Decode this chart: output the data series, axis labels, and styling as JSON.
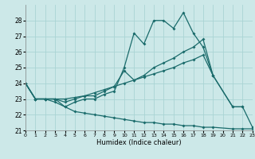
{
  "xlabel": "Humidex (Indice chaleur)",
  "background_color": "#cce8e8",
  "grid_color": "#aad4d4",
  "line_color": "#1a6b6b",
  "xlim": [
    0,
    23
  ],
  "ylim": [
    21,
    29
  ],
  "yticks": [
    21,
    22,
    23,
    24,
    25,
    26,
    27,
    28
  ],
  "xticks": [
    0,
    1,
    2,
    3,
    4,
    5,
    6,
    7,
    8,
    9,
    10,
    11,
    12,
    13,
    14,
    15,
    16,
    17,
    18,
    19,
    20,
    21,
    22,
    23
  ],
  "lines": [
    {
      "x": [
        0,
        1,
        2,
        3,
        4,
        5,
        6,
        7,
        8,
        9,
        10,
        11,
        12,
        13,
        14,
        15,
        16,
        17,
        18,
        19,
        21,
        22,
        23
      ],
      "y": [
        24.0,
        23.0,
        23.0,
        22.8,
        22.5,
        22.8,
        23.0,
        23.0,
        23.3,
        23.5,
        25.0,
        27.2,
        26.5,
        28.0,
        28.0,
        27.5,
        28.5,
        27.2,
        26.3,
        24.5,
        22.5,
        22.5,
        21.2
      ]
    },
    {
      "x": [
        0,
        1,
        2,
        3,
        4,
        5,
        6,
        7,
        8,
        9,
        10,
        11,
        12,
        13,
        14,
        15,
        16,
        17,
        18,
        19,
        21,
        22
      ],
      "y": [
        24.0,
        23.0,
        23.0,
        23.0,
        22.8,
        23.0,
        23.2,
        23.2,
        23.5,
        23.8,
        24.8,
        24.2,
        24.5,
        25.0,
        25.3,
        25.6,
        26.0,
        26.3,
        26.8,
        24.5,
        22.5,
        22.5
      ]
    },
    {
      "x": [
        0,
        1,
        2,
        3,
        4,
        5,
        6,
        7,
        8,
        9,
        10,
        11,
        12,
        13,
        14,
        15,
        16,
        17,
        18,
        19
      ],
      "y": [
        24.0,
        23.0,
        23.0,
        23.0,
        23.0,
        23.1,
        23.2,
        23.4,
        23.6,
        23.8,
        24.0,
        24.2,
        24.4,
        24.6,
        24.8,
        25.0,
        25.3,
        25.5,
        25.8,
        24.5
      ]
    },
    {
      "x": [
        0,
        1,
        2,
        3,
        4,
        5,
        6,
        7,
        8,
        9,
        10,
        11,
        12,
        13,
        14,
        15,
        16,
        17,
        18,
        19,
        21,
        22,
        23
      ],
      "y": [
        24.0,
        23.0,
        23.0,
        23.0,
        22.5,
        22.2,
        22.1,
        22.0,
        21.9,
        21.8,
        21.7,
        21.6,
        21.5,
        21.5,
        21.4,
        21.4,
        21.3,
        21.3,
        21.2,
        21.2,
        21.1,
        21.1,
        21.1
      ]
    }
  ]
}
